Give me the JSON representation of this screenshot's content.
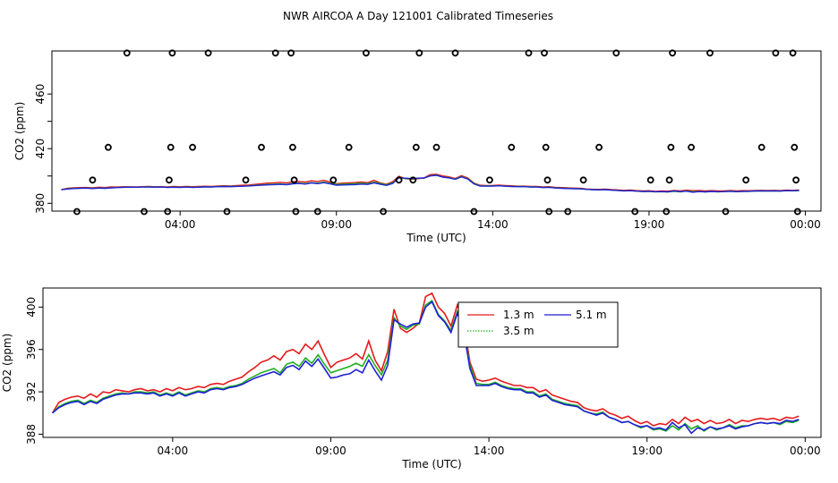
{
  "title": "NWR AIRCOA A  Day 121001  Calibrated Timeseries",
  "colors": {
    "red": "#e41a1c",
    "green": "#1fb01f",
    "blue": "#1f1fd6",
    "axis": "#000000"
  },
  "chart_data": [
    {
      "type": "line",
      "id": "top",
      "xlabel": "Time (UTC)",
      "ylabel": "CO2 (ppm)",
      "x_ticks": [
        4,
        9,
        14,
        19,
        24
      ],
      "x_tick_labels": [
        "04:00",
        "09:00",
        "14:00",
        "19:00",
        "00:00"
      ],
      "xlim": [
        -0.1,
        24.5
      ],
      "y_ticks": [
        380,
        420,
        460
      ],
      "y_ticks_minor": [
        400,
        440
      ],
      "ylim": [
        374.3,
        491.5
      ],
      "scatter_points": [
        [
          0.7,
          374
        ],
        [
          1.2,
          397
        ],
        [
          1.7,
          421
        ],
        [
          2.3,
          490
        ],
        [
          2.85,
          374
        ],
        [
          3.6,
          374
        ],
        [
          3.65,
          397
        ],
        [
          3.7,
          421
        ],
        [
          3.75,
          490
        ],
        [
          4.4,
          421
        ],
        [
          4.9,
          490
        ],
        [
          5.5,
          374
        ],
        [
          6.1,
          397
        ],
        [
          6.6,
          421
        ],
        [
          7.05,
          490
        ],
        [
          7.55,
          490
        ],
        [
          7.6,
          421
        ],
        [
          7.65,
          397
        ],
        [
          7.7,
          374
        ],
        [
          8.4,
          374
        ],
        [
          8.9,
          397
        ],
        [
          9.4,
          421
        ],
        [
          9.95,
          490
        ],
        [
          10.5,
          374
        ],
        [
          11.0,
          397
        ],
        [
          11.45,
          397
        ],
        [
          11.55,
          421
        ],
        [
          11.65,
          490
        ],
        [
          12.2,
          421
        ],
        [
          12.8,
          490
        ],
        [
          13.4,
          374
        ],
        [
          13.9,
          397
        ],
        [
          14.6,
          421
        ],
        [
          15.15,
          490
        ],
        [
          15.65,
          490
        ],
        [
          15.7,
          421
        ],
        [
          15.75,
          397
        ],
        [
          15.8,
          374
        ],
        [
          16.4,
          374
        ],
        [
          16.9,
          397
        ],
        [
          17.4,
          421
        ],
        [
          17.95,
          490
        ],
        [
          18.55,
          374
        ],
        [
          19.05,
          397
        ],
        [
          19.55,
          374
        ],
        [
          19.65,
          397
        ],
        [
          19.7,
          421
        ],
        [
          19.75,
          490
        ],
        [
          20.35,
          421
        ],
        [
          20.95,
          490
        ],
        [
          21.45,
          374
        ],
        [
          22.1,
          397
        ],
        [
          22.6,
          421
        ],
        [
          23.05,
          490
        ],
        [
          23.6,
          490
        ],
        [
          23.65,
          421
        ],
        [
          23.7,
          397
        ],
        [
          23.75,
          374
        ]
      ]
    },
    {
      "type": "line",
      "id": "bottom",
      "xlabel": "Time (UTC)",
      "ylabel": "CO2 (ppm)",
      "x_ticks": [
        4,
        9,
        14,
        19,
        24
      ],
      "x_tick_labels": [
        "04:00",
        "09:00",
        "14:00",
        "19:00",
        "00:00"
      ],
      "xlim": [
        -0.1,
        24.5
      ],
      "y_ticks": [
        388,
        392,
        396,
        400
      ],
      "ylim": [
        387.7,
        401.8
      ],
      "legend": {
        "placement": "top-right",
        "entries": [
          "1.3 m",
          "5.1 m",
          "3.5 m"
        ]
      },
      "x": [
        0.2,
        0.4,
        0.6,
        0.8,
        1.0,
        1.2,
        1.4,
        1.6,
        1.8,
        2.0,
        2.2,
        2.4,
        2.6,
        2.8,
        3.0,
        3.2,
        3.4,
        3.6,
        3.8,
        4.0,
        4.2,
        4.4,
        4.6,
        4.8,
        5.0,
        5.2,
        5.4,
        5.6,
        5.8,
        6.0,
        6.2,
        6.4,
        6.6,
        6.8,
        7.0,
        7.2,
        7.4,
        7.6,
        7.8,
        8.0,
        8.2,
        8.4,
        8.6,
        8.8,
        9.0,
        9.2,
        9.4,
        9.6,
        9.8,
        10.0,
        10.2,
        10.4,
        10.6,
        10.8,
        11.0,
        11.2,
        11.4,
        11.6,
        11.8,
        12.0,
        12.2,
        12.4,
        12.6,
        12.8,
        13.0,
        13.2,
        13.4,
        13.6,
        13.8,
        14.0,
        14.2,
        14.4,
        14.6,
        14.8,
        15.0,
        15.2,
        15.4,
        15.6,
        15.8,
        16.0,
        16.2,
        16.4,
        16.6,
        16.8,
        17.0,
        17.2,
        17.4,
        17.6,
        17.8,
        18.0,
        18.2,
        18.4,
        18.6,
        18.8,
        19.0,
        19.2,
        19.4,
        19.6,
        19.8,
        20.0,
        20.2,
        20.4,
        20.6,
        20.8,
        21.0,
        21.2,
        21.4,
        21.6,
        21.8,
        22.0,
        22.2,
        22.4,
        22.6,
        22.8,
        23.0,
        23.2,
        23.4,
        23.6,
        23.8
      ],
      "series": [
        {
          "name": "1.3 m",
          "color": "#e41a1c",
          "values": [
            390.0,
            391.0,
            391.3,
            391.5,
            391.6,
            391.4,
            391.8,
            391.5,
            392.0,
            391.9,
            392.2,
            392.1,
            392.0,
            392.2,
            392.3,
            392.1,
            392.2,
            392.0,
            392.3,
            392.1,
            392.4,
            392.2,
            392.3,
            392.5,
            392.4,
            392.7,
            392.8,
            392.7,
            393.0,
            393.2,
            393.4,
            393.9,
            394.3,
            394.8,
            395.0,
            395.4,
            395.0,
            395.8,
            396.0,
            395.6,
            396.5,
            396.0,
            396.8,
            395.5,
            394.3,
            394.8,
            395.0,
            395.2,
            395.6,
            395.1,
            396.8,
            395.0,
            394.0,
            395.8,
            399.8,
            398.0,
            397.6,
            398.0,
            398.5,
            401.0,
            401.3,
            400.0,
            399.4,
            398.2,
            400.2,
            398.6,
            394.8,
            393.2,
            393.0,
            393.1,
            393.3,
            393.0,
            392.8,
            392.6,
            392.6,
            392.4,
            392.4,
            392.0,
            392.2,
            391.7,
            391.5,
            391.3,
            391.1,
            391.0,
            390.5,
            390.3,
            390.2,
            390.4,
            390.0,
            389.8,
            389.5,
            389.7,
            389.3,
            389.0,
            389.2,
            388.8,
            389.0,
            388.9,
            389.4,
            389.0,
            389.6,
            389.2,
            389.4,
            389.0,
            389.3,
            389.0,
            389.1,
            389.4,
            389.0,
            389.3,
            389.2,
            389.4,
            389.5,
            389.4,
            389.5,
            389.3,
            389.6,
            389.5,
            389.7
          ]
        },
        {
          "name": "3.5 m",
          "color": "#1fb01f",
          "values": [
            390.0,
            390.6,
            390.9,
            391.1,
            391.2,
            390.9,
            391.2,
            391.0,
            391.4,
            391.6,
            391.8,
            391.9,
            391.8,
            392.0,
            392.0,
            391.9,
            392.0,
            391.7,
            391.9,
            391.7,
            392.0,
            391.7,
            391.9,
            392.1,
            392.0,
            392.3,
            392.4,
            392.3,
            392.5,
            392.6,
            392.8,
            393.2,
            393.5,
            393.8,
            394.0,
            394.2,
            393.8,
            394.6,
            394.8,
            394.4,
            395.2,
            394.7,
            395.5,
            394.6,
            393.8,
            394.0,
            394.2,
            394.4,
            394.7,
            394.4,
            395.5,
            394.5,
            393.6,
            395.0,
            399.0,
            398.2,
            397.9,
            398.3,
            398.4,
            400.2,
            400.6,
            399.3,
            398.7,
            397.8,
            399.6,
            398.0,
            394.5,
            392.8,
            392.7,
            392.7,
            392.9,
            392.6,
            392.4,
            392.3,
            392.3,
            392.0,
            392.0,
            391.6,
            391.8,
            391.3,
            391.1,
            390.9,
            390.8,
            390.7,
            390.2,
            390.0,
            389.9,
            390.1,
            389.6,
            389.4,
            389.1,
            389.2,
            388.9,
            388.6,
            388.8,
            388.4,
            388.5,
            388.3,
            388.8,
            388.4,
            389.0,
            388.5,
            388.8,
            388.3,
            388.7,
            388.4,
            388.6,
            388.9,
            388.6,
            388.8,
            388.8,
            389.0,
            389.1,
            389.0,
            389.1,
            388.9,
            389.2,
            389.1,
            389.3
          ]
        },
        {
          "name": "5.1 m",
          "color": "#1f1fd6",
          "values": [
            390.0,
            390.5,
            390.8,
            391.0,
            391.1,
            390.8,
            391.1,
            390.9,
            391.3,
            391.5,
            391.7,
            391.8,
            391.8,
            391.9,
            391.9,
            391.8,
            391.9,
            391.6,
            391.8,
            391.6,
            391.9,
            391.6,
            391.8,
            392.0,
            391.9,
            392.2,
            392.3,
            392.2,
            392.4,
            392.5,
            392.7,
            393.0,
            393.3,
            393.5,
            393.7,
            393.9,
            393.6,
            394.3,
            394.5,
            394.1,
            394.9,
            394.4,
            395.1,
            394.2,
            393.3,
            393.4,
            393.6,
            393.7,
            394.1,
            393.8,
            395.0,
            394.0,
            393.1,
            394.5,
            398.8,
            398.4,
            398.1,
            398.4,
            398.5,
            400.0,
            400.5,
            399.2,
            398.6,
            397.6,
            399.4,
            397.8,
            394.2,
            392.6,
            392.6,
            392.6,
            392.8,
            392.5,
            392.3,
            392.2,
            392.2,
            391.9,
            391.9,
            391.5,
            391.7,
            391.2,
            391.0,
            390.8,
            390.7,
            390.6,
            390.2,
            390.0,
            389.8,
            390.0,
            389.6,
            389.4,
            389.1,
            389.2,
            388.9,
            388.7,
            388.8,
            388.5,
            388.6,
            388.4,
            389.1,
            388.6,
            388.9,
            388.1,
            388.6,
            388.4,
            388.7,
            388.5,
            388.6,
            388.8,
            388.5,
            388.7,
            388.8,
            389.0,
            389.1,
            389.0,
            389.1,
            389.0,
            389.3,
            389.2,
            389.4
          ]
        }
      ]
    }
  ]
}
